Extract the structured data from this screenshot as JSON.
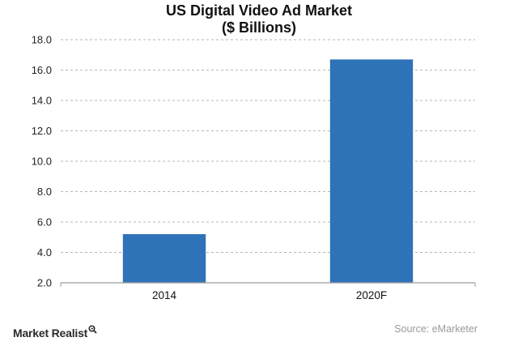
{
  "chart_data": {
    "type": "bar",
    "title": "US Digital Video Ad Market",
    "subtitle": "($ Billions)",
    "categories": [
      "2014",
      "2020F"
    ],
    "values": [
      5.2,
      16.7
    ],
    "xlabel": "",
    "ylabel": "",
    "ylim": [
      2.0,
      18.0
    ],
    "yticks": [
      "2.0",
      "4.0",
      "6.0",
      "8.0",
      "10.0",
      "12.0",
      "14.0",
      "16.0",
      "18.0"
    ],
    "grid": true,
    "legend": "none",
    "bar_color": "#2e72b8",
    "source": "Source: eMarketer"
  },
  "branding": {
    "name": "Market Realist",
    "icon": "magnifier-icon"
  }
}
